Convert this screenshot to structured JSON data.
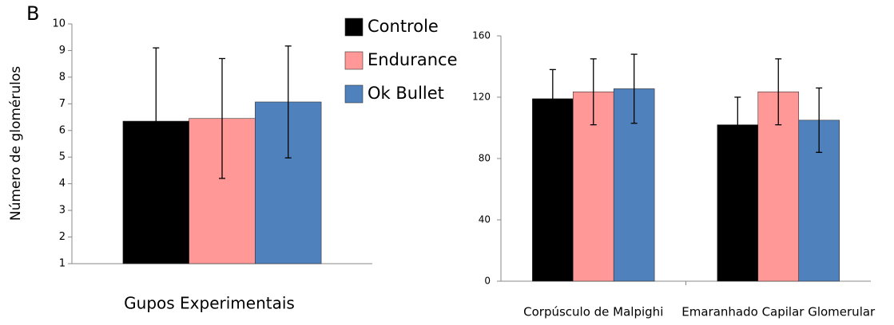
{
  "chart_data": [
    {
      "type": "bar",
      "panel_label": "B",
      "ylabel": "Número de glomérulos",
      "xlabel": "Gupos Experimentais",
      "categories": [
        null
      ],
      "series": [
        {
          "name": "Controle",
          "color": "#000000",
          "values": [
            6.35
          ],
          "errors": [
            2.75
          ]
        },
        {
          "name": "Endurance",
          "color": "#ff9896",
          "values": [
            6.45
          ],
          "errors": [
            2.25
          ]
        },
        {
          "name": "Ok Bullet",
          "color": "#4f81bd",
          "values": [
            7.07
          ],
          "errors": [
            2.1
          ]
        }
      ],
      "ylim": [
        1,
        10
      ],
      "yticks": [
        1,
        2,
        3,
        4,
        5,
        6,
        7,
        8,
        9,
        10
      ],
      "grid": false
    },
    {
      "type": "bar",
      "categories": [
        "Corpúsculo de Malpighi",
        "Emaranhado Capilar Glomerular"
      ],
      "series": [
        {
          "color": "#000000",
          "values": [
            119,
            102
          ],
          "errors": [
            19,
            18
          ]
        },
        {
          "color": "#ff9896",
          "values": [
            123.5,
            123.5
          ],
          "errors": [
            21.5,
            21.5
          ]
        },
        {
          "color": "#4f81bd",
          "values": [
            125.5,
            105
          ],
          "errors": [
            22.5,
            21
          ]
        }
      ],
      "ylim": [
        0,
        160
      ],
      "yticks": [
        0,
        40,
        80,
        120,
        160
      ],
      "grid": false
    }
  ]
}
